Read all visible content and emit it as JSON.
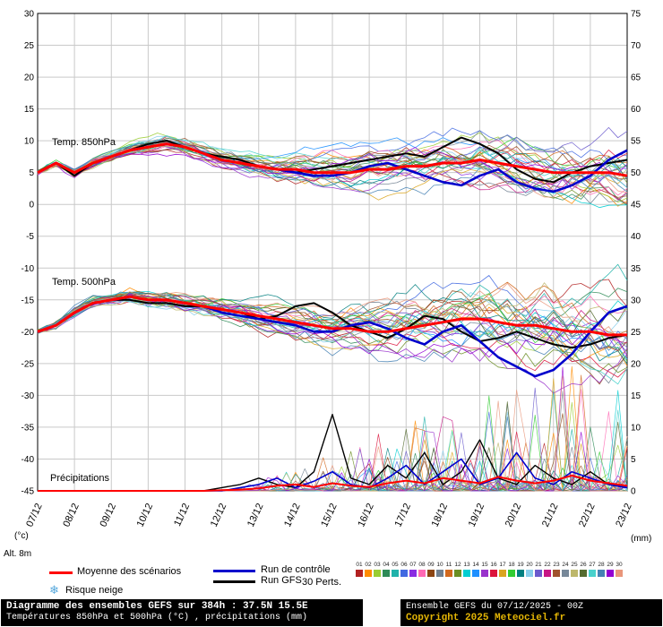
{
  "chart_data": {
    "type": "line",
    "title": "Diagramme des ensembles GEFS sur 384h : 37.5N 15.5E",
    "subtitle": "Températures 850hPa et 500hPa (°C) , précipitations (mm)",
    "x_tick_labels": [
      "07/12",
      "08/12",
      "09/12",
      "10/12",
      "11/12",
      "12/12",
      "13/12",
      "14/12",
      "15/12",
      "16/12",
      "17/12",
      "18/12",
      "19/12",
      "20/12",
      "21/12",
      "22/12",
      "23/12"
    ],
    "step_hours": 12,
    "left_axis": {
      "unit": "(°c)",
      "min": -45,
      "max": 30,
      "tick_step": 5
    },
    "right_axis": {
      "unit": "(mm)",
      "min": 0,
      "max": 75,
      "tick_step": 5
    },
    "sections": {
      "t850_label": "Temp. 850hPa",
      "t500_label": "Temp. 500hPa",
      "precip_label": "Précipitations"
    },
    "series": {
      "t850_mean": [
        5,
        6.5,
        5,
        6.5,
        7.5,
        8.5,
        9,
        9.5,
        9,
        8,
        7,
        6.5,
        6,
        5.5,
        5.5,
        5,
        5,
        5,
        5.5,
        5.5,
        6,
        6,
        6.5,
        6.5,
        7,
        6.5,
        6,
        5.5,
        5,
        5,
        5,
        5,
        4.5
      ],
      "t850_control": [
        5,
        6.5,
        5,
        6.5,
        7.5,
        8.5,
        9,
        9.5,
        9,
        8,
        7,
        6.5,
        6,
        5.5,
        5,
        4.5,
        4.5,
        5,
        6,
        6.5,
        5.5,
        4.5,
        3.5,
        3,
        4.5,
        5.5,
        3.5,
        2.5,
        2,
        3,
        4.5,
        7,
        8.5
      ],
      "t850_gfs": [
        5,
        6.5,
        4.5,
        6.5,
        7.5,
        8.5,
        9.5,
        10,
        9,
        8,
        7.5,
        7,
        6,
        5.5,
        5,
        5.5,
        6,
        6.5,
        7,
        7.5,
        8,
        7.5,
        9,
        10.5,
        9.5,
        8,
        5.5,
        4,
        3.5,
        5,
        6,
        6.5,
        7
      ],
      "t500_mean": [
        -20,
        -19,
        -17,
        -15.5,
        -15,
        -14.5,
        -15,
        -15,
        -15.5,
        -16,
        -16.5,
        -17,
        -17.5,
        -18,
        -18.5,
        -19,
        -19.5,
        -19.5,
        -20,
        -20,
        -19.5,
        -19,
        -18.5,
        -18,
        -18,
        -18.5,
        -19,
        -19,
        -19.5,
        -20,
        -20,
        -20.5,
        -20.5
      ],
      "t500_control": [
        -20,
        -19,
        -17,
        -15.5,
        -15,
        -14.5,
        -15,
        -15,
        -15.5,
        -16,
        -17,
        -17.5,
        -18,
        -18.5,
        -19,
        -20,
        -20,
        -19,
        -18.5,
        -19.5,
        -21,
        -22,
        -20,
        -19,
        -21.5,
        -24,
        -25.5,
        -27,
        -26,
        -23.5,
        -20,
        -17,
        -16
      ],
      "t500_gfs": [
        -20,
        -19,
        -17,
        -15.5,
        -15,
        -15,
        -15.5,
        -15.5,
        -16,
        -16,
        -16.5,
        -17,
        -18,
        -17.5,
        -16,
        -15.5,
        -17,
        -19,
        -20,
        -21,
        -19.5,
        -17.5,
        -18,
        -20,
        -21.5,
        -21,
        -20,
        -21,
        -22,
        -22.5,
        -22,
        -21,
        -20.5
      ],
      "precip_mean": [
        0,
        0,
        0,
        0,
        0,
        0,
        0,
        0,
        0,
        0,
        0.1,
        0.2,
        0.4,
        0.8,
        1,
        0.6,
        1.2,
        0.8,
        0.6,
        1.2,
        1.6,
        1.2,
        2,
        1.6,
        1.2,
        2.2,
        1.6,
        1.2,
        1.6,
        2.4,
        1.6,
        1.2,
        0.8
      ],
      "precip_control": [
        0,
        0,
        0,
        0,
        0,
        0,
        0,
        0,
        0,
        0,
        0,
        0.5,
        1,
        2,
        0.5,
        1.5,
        3,
        1,
        0.5,
        2,
        4,
        1,
        3,
        5,
        1,
        2,
        6,
        2,
        1,
        3,
        2,
        1,
        0.5
      ],
      "precip_gfs": [
        0,
        0,
        0,
        0,
        0,
        0,
        0,
        0,
        0,
        0,
        0.5,
        1,
        2,
        1,
        0.5,
        3,
        12,
        2,
        1,
        4,
        2,
        6,
        1,
        3,
        8,
        2,
        1,
        4,
        2,
        1,
        3,
        1,
        0.5
      ]
    },
    "ensemble": {
      "count": 30,
      "spread_t850": [
        0.4,
        0.5,
        0.5,
        0.6,
        0.7,
        0.8,
        0.9,
        1,
        1,
        1.1,
        1.2,
        1.3,
        1.4,
        1.5,
        1.6,
        1.8,
        2,
        2.1,
        2.2,
        2.4,
        2.5,
        2.6,
        2.8,
        2.9,
        3,
        3.1,
        3.2,
        3.4,
        3.5,
        3.6,
        3.7,
        3.8,
        4
      ],
      "spread_t500": [
        0.4,
        0.5,
        0.6,
        0.7,
        0.8,
        0.9,
        1,
        1.1,
        1.2,
        1.3,
        1.4,
        1.6,
        1.8,
        2,
        2.2,
        2.4,
        2.6,
        2.8,
        3,
        3.2,
        3.4,
        3.6,
        3.8,
        4,
        4.2,
        4.4,
        4.6,
        4.8,
        5,
        5.2,
        5.4,
        5.6,
        5.8
      ],
      "member_colors": [
        "#b22222",
        "#ff8c00",
        "#9acd32",
        "#2e8b57",
        "#20b2aa",
        "#4169e1",
        "#8a2be2",
        "#ff69b4",
        "#8b4513",
        "#708090",
        "#d2691e",
        "#6b8e23",
        "#00ced1",
        "#1e90ff",
        "#9932cc",
        "#dc143c",
        "#daa520",
        "#32cd32",
        "#008080",
        "#87ceeb",
        "#6a5acd",
        "#c71585",
        "#a0522d",
        "#778899",
        "#bdb76b",
        "#556b2f",
        "#48d1cc",
        "#4682b4",
        "#9400d3",
        "#e9967a"
      ]
    }
  },
  "legend": {
    "mean_label": "Moyenne des scénarios",
    "control_label": "Run de contrôle",
    "gfs_label": "Run GFS",
    "perts_label": "30 Perts.",
    "member_numbers": [
      "01",
      "02",
      "03",
      "04",
      "05",
      "06",
      "07",
      "08",
      "09",
      "10",
      "11",
      "12",
      "13",
      "14",
      "15",
      "16",
      "17",
      "18",
      "19",
      "20",
      "21",
      "22",
      "23",
      "24",
      "25",
      "26",
      "27",
      "28",
      "29",
      "30"
    ],
    "mean_color": "#ff0000",
    "control_color": "#0000cc",
    "gfs_color": "#000000"
  },
  "annotations": {
    "altitude": "Alt. 8m",
    "snowflake_icon": "❄",
    "snowflake_color": "#56a8dc",
    "snow_risk": "Risque neige"
  },
  "footer": {
    "title": "Diagramme des ensembles GEFS sur 384h : 37.5N 15.5E",
    "subtitle": "Températures 850hPa et 500hPa (°C) , précipitations (mm)",
    "run_info": "Ensemble GEFS du 07/12/2025 - 00Z",
    "copyright": "Copyright 2025 Meteociel.fr",
    "copyright_color": "#e3b505"
  }
}
